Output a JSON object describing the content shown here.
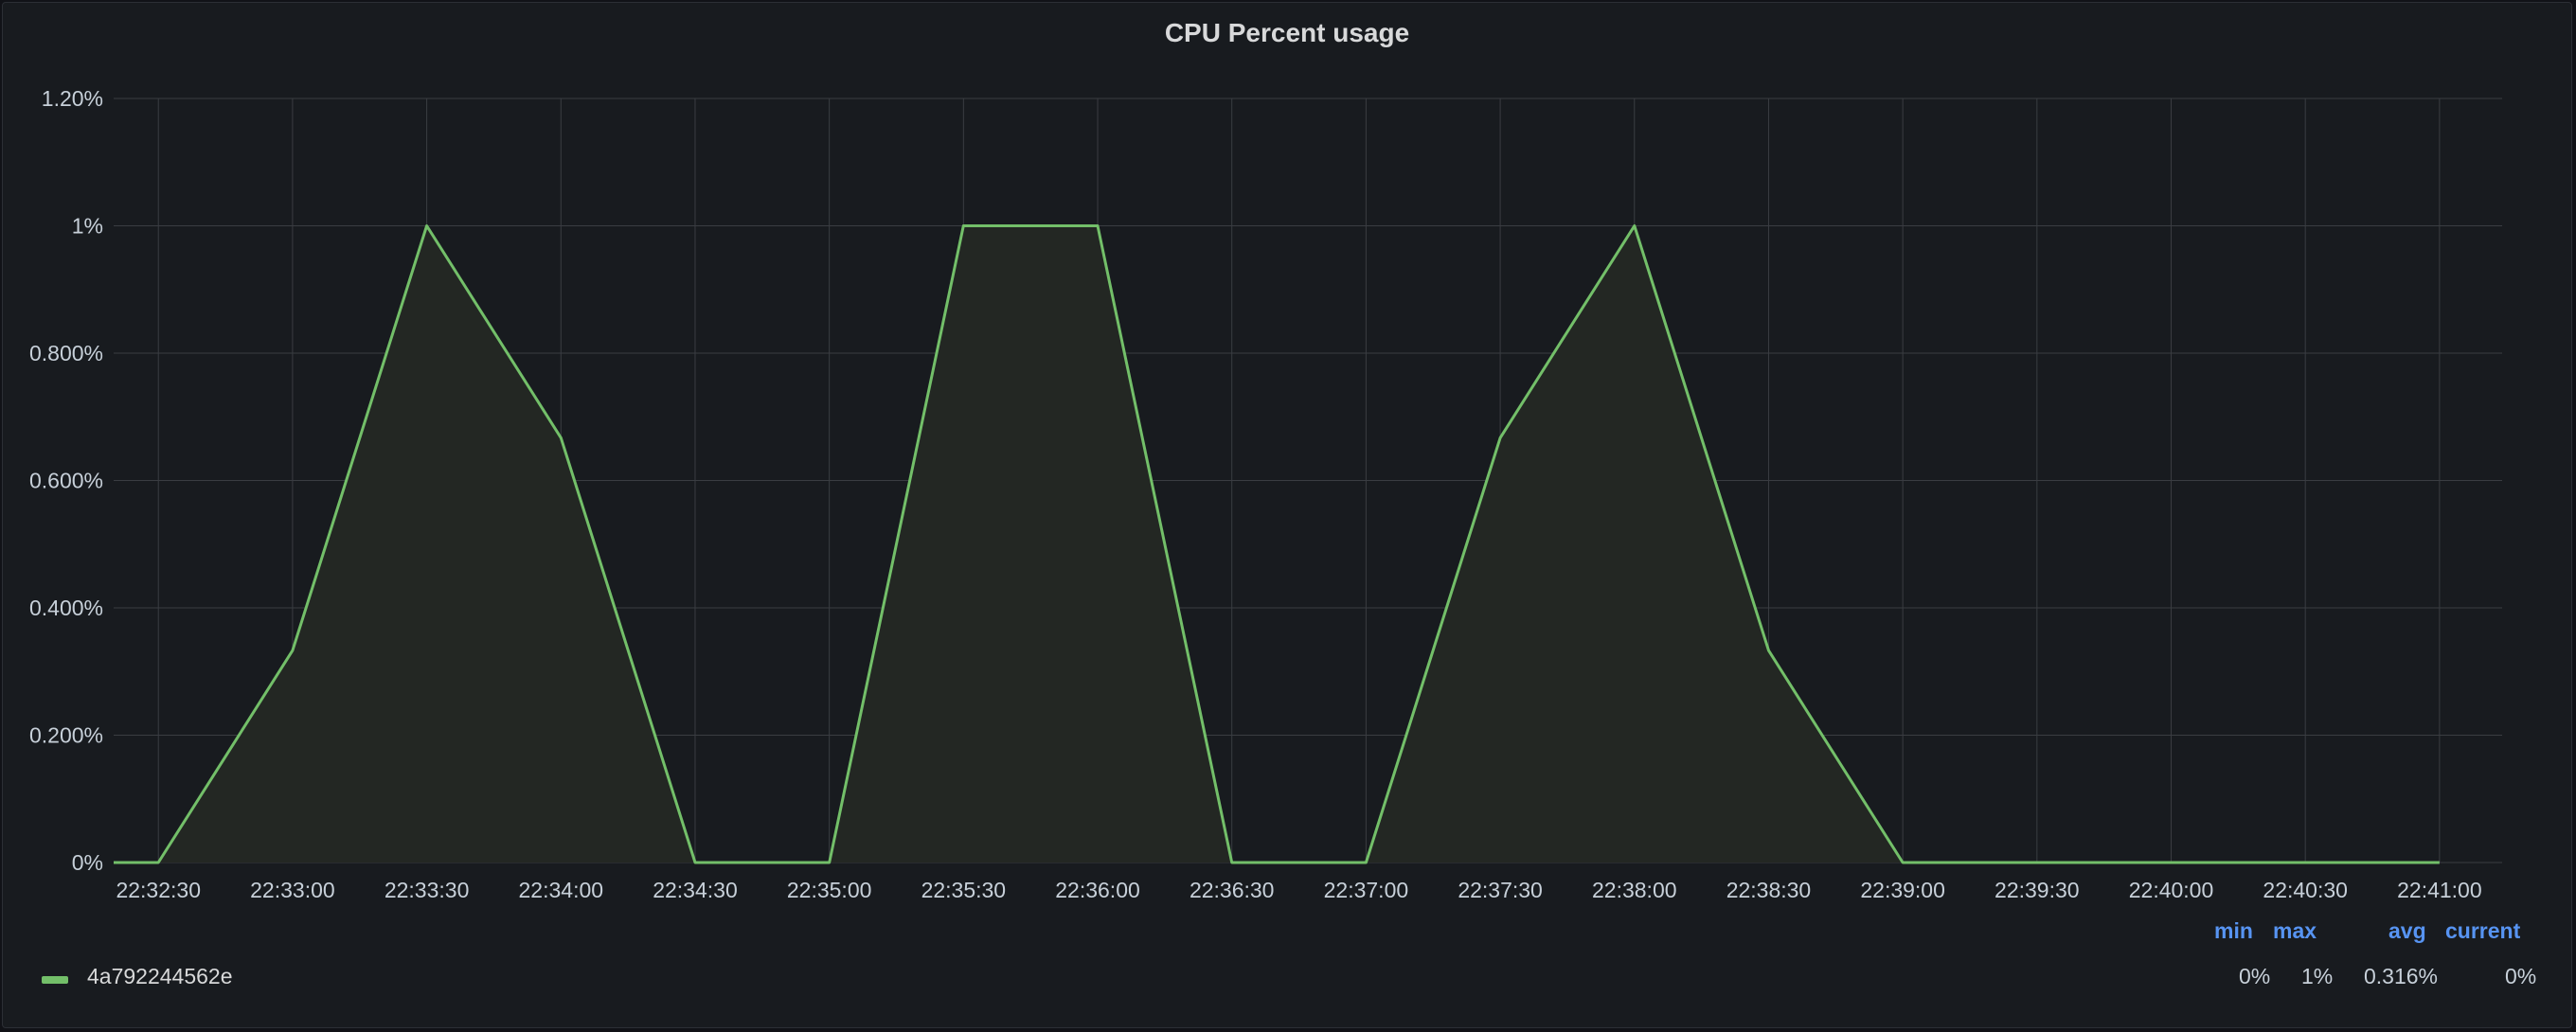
{
  "panel": {
    "title": "CPU Percent usage"
  },
  "chart_data": {
    "type": "area",
    "title": "CPU Percent usage",
    "xlabel": "",
    "ylabel": "",
    "grid": true,
    "legend_placement": "bottom",
    "ylim": [
      0,
      1.2
    ],
    "y_ticks": [
      {
        "value": 0,
        "label": "0%"
      },
      {
        "value": 0.2,
        "label": "0.200%"
      },
      {
        "value": 0.4,
        "label": "0.400%"
      },
      {
        "value": 0.6,
        "label": "0.600%"
      },
      {
        "value": 0.8,
        "label": "0.800%"
      },
      {
        "value": 1.0,
        "label": "1%"
      },
      {
        "value": 1.2,
        "label": "1.20%"
      }
    ],
    "x_ticks": [
      "22:32:30",
      "22:33:00",
      "22:33:30",
      "22:34:00",
      "22:34:30",
      "22:35:00",
      "22:35:30",
      "22:36:00",
      "22:36:30",
      "22:37:00",
      "22:37:30",
      "22:38:00",
      "22:38:30",
      "22:39:00",
      "22:39:30",
      "22:40:00",
      "22:40:30",
      "22:41:00"
    ],
    "xlim": [
      "22:32:20",
      "22:41:14"
    ],
    "series": [
      {
        "name": "4a792244562e",
        "color": "#73bf69",
        "fill": "#232723",
        "points": [
          {
            "t": "22:32:20",
            "v": 0
          },
          {
            "t": "22:32:30",
            "v": 0
          },
          {
            "t": "22:33:00",
            "v": 0.333
          },
          {
            "t": "22:33:30",
            "v": 1
          },
          {
            "t": "22:34:00",
            "v": 0.667
          },
          {
            "t": "22:34:30",
            "v": 0
          },
          {
            "t": "22:35:00",
            "v": 0
          },
          {
            "t": "22:35:30",
            "v": 1
          },
          {
            "t": "22:36:00",
            "v": 1
          },
          {
            "t": "22:36:30",
            "v": 0
          },
          {
            "t": "22:37:00",
            "v": 0
          },
          {
            "t": "22:37:30",
            "v": 0.667
          },
          {
            "t": "22:38:00",
            "v": 1
          },
          {
            "t": "22:38:30",
            "v": 0.333
          },
          {
            "t": "22:39:00",
            "v": 0
          },
          {
            "t": "22:39:30",
            "v": 0
          },
          {
            "t": "22:40:00",
            "v": 0
          },
          {
            "t": "22:40:30",
            "v": 0
          },
          {
            "t": "22:41:00",
            "v": 0
          }
        ]
      }
    ]
  },
  "legend": {
    "headers": {
      "min": "min",
      "max": "max",
      "avg": "avg",
      "current": "current"
    },
    "items": [
      {
        "name": "4a792244562e",
        "color": "#73bf69",
        "min": "0%",
        "max": "1%",
        "avg": "0.316%",
        "current": "0%"
      }
    ]
  },
  "colors": {
    "background": "#181b1f",
    "grid": "#3a3d42",
    "tick_text": "#c7d0d9",
    "legend_header": "#5794f2"
  }
}
